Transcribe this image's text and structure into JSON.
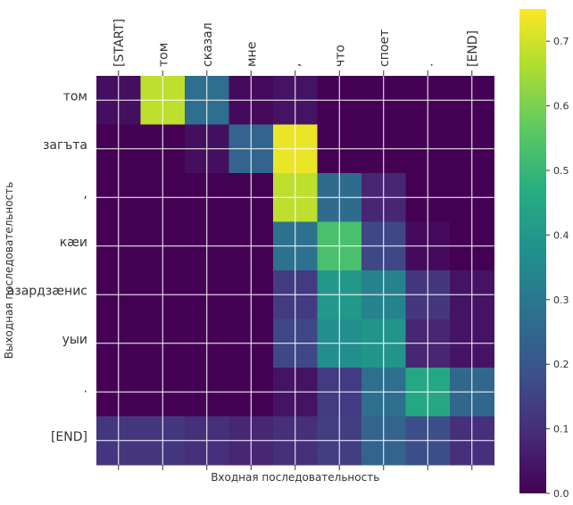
{
  "chart_data": {
    "type": "heatmap",
    "xlabel": "Входная последовательность",
    "ylabel": "Выходная последовательность",
    "x_tokens": [
      "[START]",
      "том",
      "сказал",
      "мне",
      ",",
      "что",
      "споет",
      ".",
      "[END]"
    ],
    "y_tokens": [
      "том",
      "загъта",
      ",",
      "кæи",
      "азардзæнис",
      "уыи",
      ".",
      "[END]"
    ],
    "colorbar": {
      "min": 0.0,
      "max": 0.75,
      "ticks": [
        "0.0",
        "0.1",
        "0.2",
        "0.3",
        "0.4",
        "0.5",
        "0.6",
        "0.7"
      ]
    },
    "colormap": "viridis",
    "grid": true,
    "values": [
      [
        0.03,
        0.68,
        0.27,
        0.02,
        0.04,
        0.0,
        0.0,
        0.0,
        0.0
      ],
      [
        0.0,
        0.0,
        0.03,
        0.24,
        0.73,
        0.0,
        0.0,
        0.0,
        0.0
      ],
      [
        0.0,
        0.0,
        0.0,
        0.0,
        0.68,
        0.26,
        0.08,
        0.0,
        0.0
      ],
      [
        0.0,
        0.0,
        0.0,
        0.0,
        0.28,
        0.53,
        0.16,
        0.02,
        0.0
      ],
      [
        0.0,
        0.0,
        0.0,
        0.0,
        0.13,
        0.4,
        0.33,
        0.12,
        0.04
      ],
      [
        0.0,
        0.0,
        0.0,
        0.0,
        0.16,
        0.37,
        0.39,
        0.08,
        0.04
      ],
      [
        0.0,
        0.0,
        0.0,
        0.0,
        0.04,
        0.13,
        0.27,
        0.45,
        0.25
      ],
      [
        0.12,
        0.12,
        0.1,
        0.08,
        0.1,
        0.14,
        0.24,
        0.18,
        0.1
      ]
    ]
  }
}
